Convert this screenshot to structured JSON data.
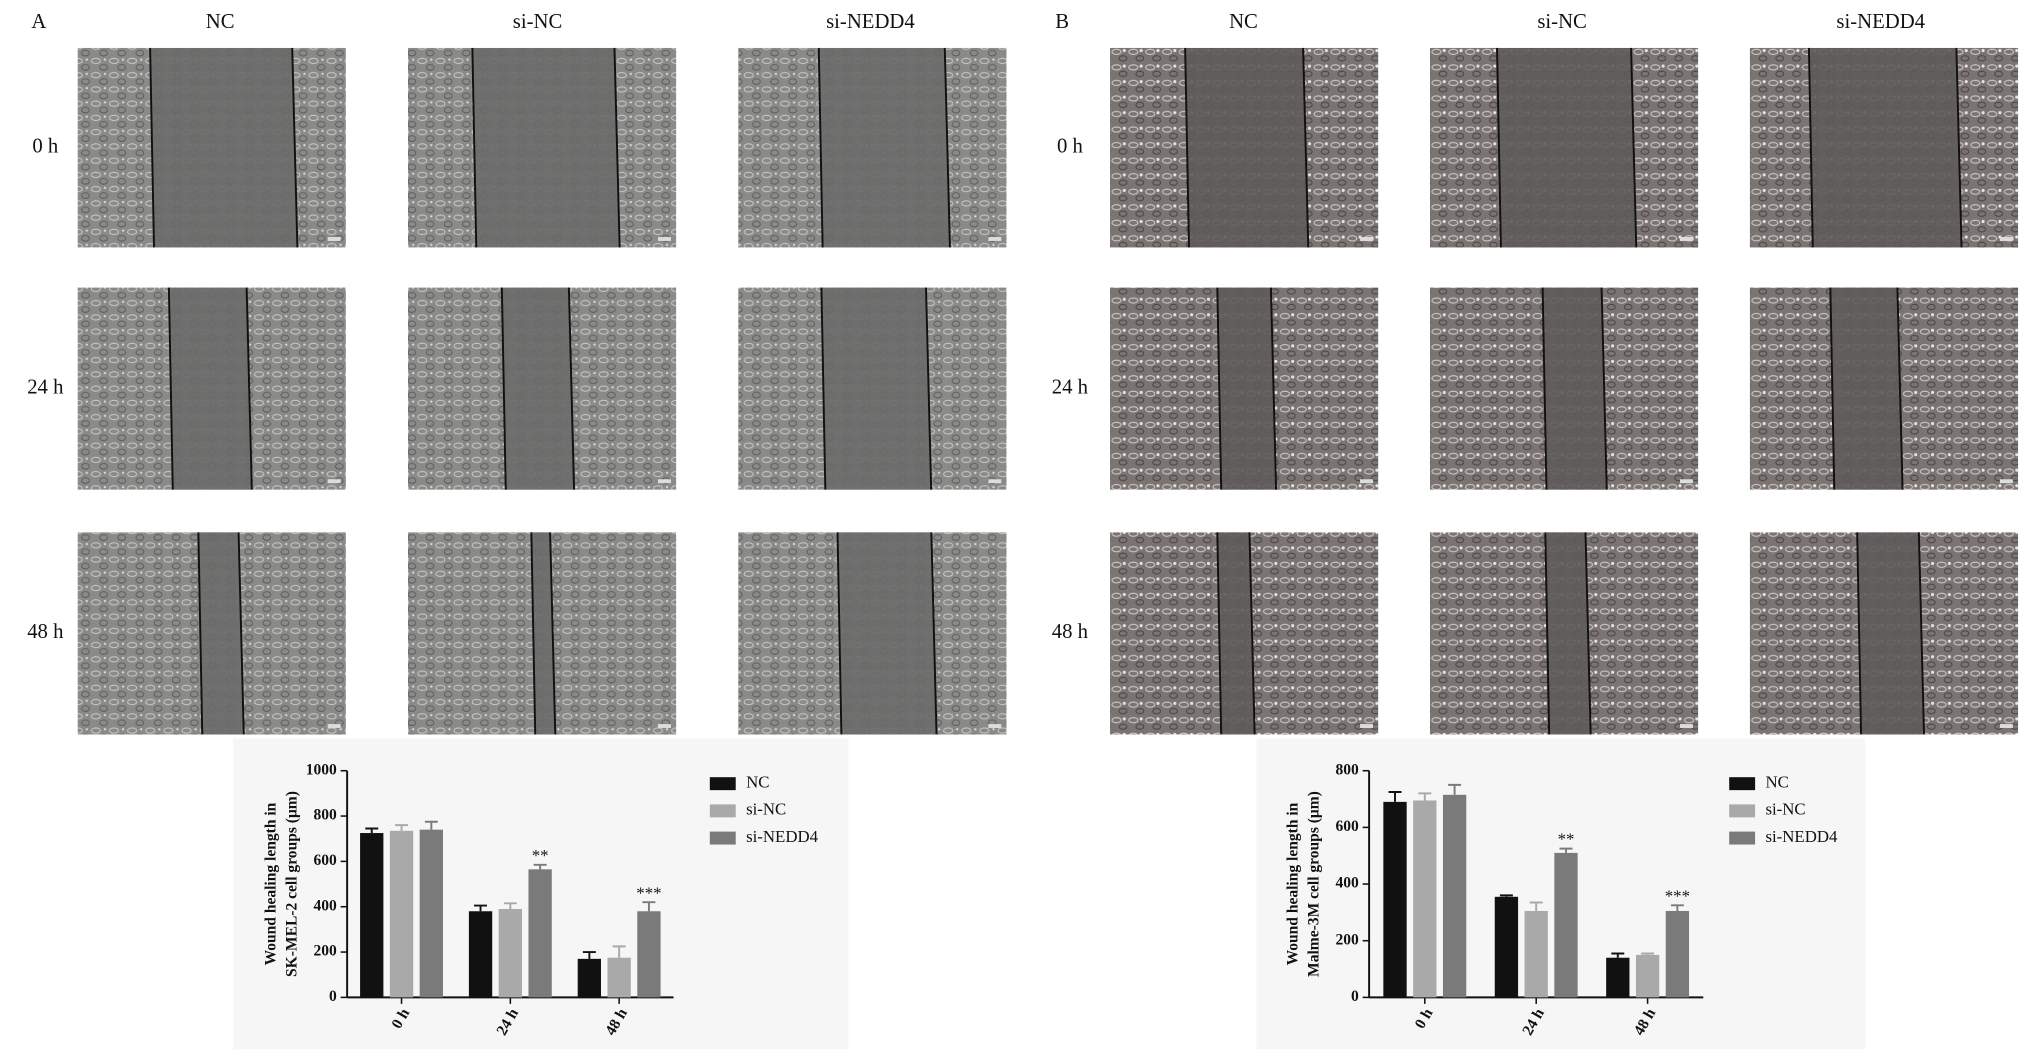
{
  "panels": [
    {
      "label": "A",
      "columns": [
        "NC",
        "si-NC",
        "si-NEDD4"
      ],
      "rows": [
        "0 h",
        "24 h",
        "48 h"
      ]
    },
    {
      "label": "B",
      "columns": [
        "NC",
        "si-NC",
        "si-NEDD4"
      ],
      "rows": [
        "0 h",
        "24 h",
        "48 h"
      ]
    }
  ],
  "chart_data": [
    {
      "type": "bar",
      "ylabel": [
        "Wound healing length in",
        "SK-MEL-2 cell groups (μm)"
      ],
      "categories": [
        "0 h",
        "24 h",
        "48 h"
      ],
      "ylim": [
        0,
        1000
      ],
      "yticks": [
        0,
        200,
        400,
        600,
        800,
        1000
      ],
      "legend": "right",
      "series": [
        {
          "name": "NC",
          "color": "#111111",
          "values": [
            725,
            380,
            170
          ],
          "errors": [
            20,
            25,
            30
          ]
        },
        {
          "name": "si-NC",
          "color": "#a9a9a9",
          "values": [
            735,
            390,
            175
          ],
          "errors": [
            25,
            25,
            50
          ]
        },
        {
          "name": "si-NEDD4",
          "color": "#7a7a7a",
          "values": [
            740,
            565,
            380
          ],
          "errors": [
            35,
            20,
            40
          ],
          "significance": [
            null,
            "**",
            "***"
          ]
        }
      ]
    },
    {
      "type": "bar",
      "ylabel": [
        "Wound healing length in",
        "Malme-3M cell groups (μm)"
      ],
      "categories": [
        "0 h",
        "24 h",
        "48 h"
      ],
      "ylim": [
        0,
        800
      ],
      "yticks": [
        0,
        200,
        400,
        600,
        800
      ],
      "legend": "right",
      "series": [
        {
          "name": "NC",
          "color": "#111111",
          "values": [
            690,
            355,
            140
          ],
          "errors": [
            35,
            5,
            15
          ]
        },
        {
          "name": "si-NC",
          "color": "#a9a9a9",
          "values": [
            695,
            305,
            150
          ],
          "errors": [
            25,
            30,
            5
          ]
        },
        {
          "name": "si-NEDD4",
          "color": "#7a7a7a",
          "values": [
            715,
            510,
            305
          ],
          "errors": [
            35,
            15,
            20
          ],
          "significance": [
            null,
            "**",
            "***"
          ]
        }
      ]
    }
  ]
}
